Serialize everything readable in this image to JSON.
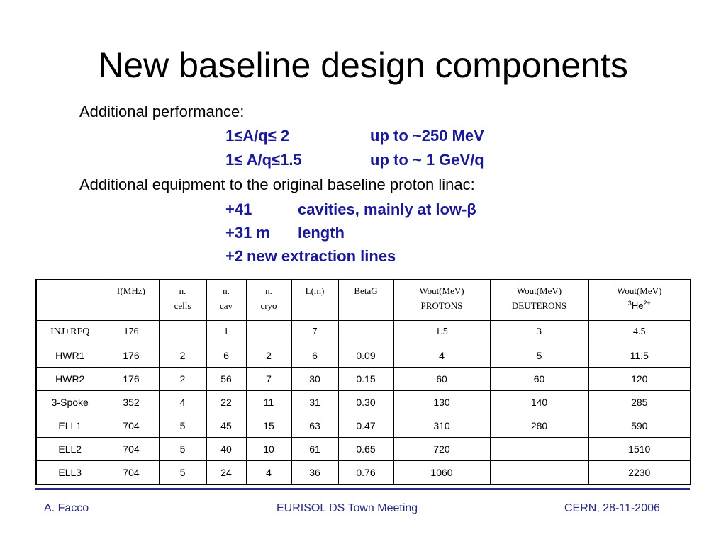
{
  "title": "New baseline design components",
  "perf": {
    "heading": "Additional performance:",
    "rows": [
      {
        "range": "1≤A/q≤ 2",
        "value": "up to ~250 MeV"
      },
      {
        "range": "1≤ A/q≤1.5",
        "value": "up to ~ 1 GeV/q"
      }
    ]
  },
  "equip": {
    "heading": "Additional equipment to the original baseline proton linac:",
    "rows": [
      {
        "qty": "+41",
        "desc": "cavities, mainly at low-β"
      },
      {
        "qty": "+31 m",
        "desc": "length"
      },
      {
        "qty": "+2",
        "desc": "new extraction lines"
      }
    ]
  },
  "table": {
    "headers": {
      "h0": "",
      "h1": "f(MHz)",
      "h2a": "n.",
      "h2b": "cells",
      "h3a": "n.",
      "h3b": "cav",
      "h4a": "n.",
      "h4b": "cryo",
      "h5": "L(m)",
      "h6": "BetaG",
      "h7a": "Wout(MeV)",
      "h7b": "PROTONS",
      "h8a": "Wout(MeV)",
      "h8b": "DEUTERONS",
      "h9a": "Wout(MeV)",
      "h9b_sup": "3",
      "h9b": "He",
      "h9b_sup2": "2+"
    },
    "rows": [
      [
        "INJ+RFQ",
        "176",
        "",
        "1",
        "",
        "7",
        "",
        "1.5",
        "3",
        "4.5"
      ],
      [
        "HWR1",
        "176",
        "2",
        "6",
        "2",
        "6",
        "0.09",
        "4",
        "5",
        "11.5"
      ],
      [
        "HWR2",
        "176",
        "2",
        "56",
        "7",
        "30",
        "0.15",
        "60",
        "60",
        "120"
      ],
      [
        "3-Spoke",
        "352",
        "4",
        "22",
        "11",
        "31",
        "0.30",
        "130",
        "140",
        "285"
      ],
      [
        "ELL1",
        "704",
        "5",
        "45",
        "15",
        "63",
        "0.47",
        "310",
        "280",
        "590"
      ],
      [
        "ELL2",
        "704",
        "5",
        "40",
        "10",
        "61",
        "0.65",
        "720",
        "",
        "1510"
      ],
      [
        "ELL3",
        "704",
        "5",
        "24",
        "4",
        "36",
        "0.76",
        "1060",
        "",
        "2230"
      ]
    ]
  },
  "footer": {
    "author": "A. Facco",
    "event": "EURISOL DS Town Meeting",
    "place_date": "CERN, 28-11-2006"
  },
  "colors": {
    "accent": "#1a1a99",
    "footer": "#2a2a80"
  }
}
